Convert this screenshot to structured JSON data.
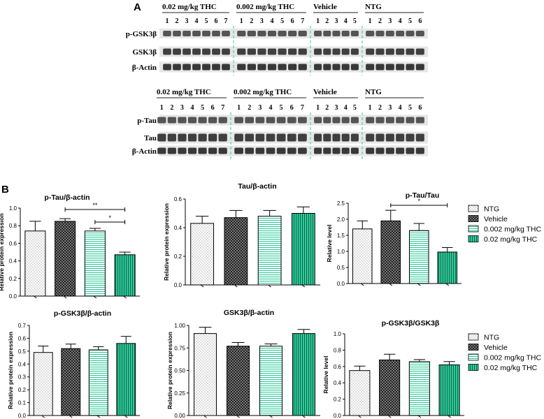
{
  "panel_a": {
    "label": "A",
    "set1": {
      "groups": [
        {
          "title": "0.02 mg/kg THC",
          "lanes": [
            "1",
            "2",
            "3",
            "4",
            "5",
            "6",
            "7"
          ]
        },
        {
          "title": "0.002 mg/kg THC",
          "lanes": [
            "1",
            "2",
            "3",
            "4",
            "5",
            "6",
            "7"
          ]
        },
        {
          "title": "Vehicle",
          "lanes": [
            "1",
            "2",
            "3",
            "4",
            "5"
          ]
        },
        {
          "title": "NTG",
          "lanes": [
            "1",
            "2",
            "3",
            "4",
            "5",
            "6"
          ]
        }
      ],
      "rows": [
        "p-GSK3β",
        "GSK3β",
        "β-Actin"
      ]
    },
    "set2": {
      "groups": [
        {
          "title": "0.02 mg/kg THC",
          "lanes": [
            "1",
            "2",
            "3",
            "4",
            "5",
            "6",
            "7"
          ]
        },
        {
          "title": "0.002 mg/kg THC",
          "lanes": [
            "1",
            "2",
            "3",
            "4",
            "5",
            "6",
            "7"
          ]
        },
        {
          "title": "Vehicle",
          "lanes": [
            "1",
            "2",
            "3",
            "4",
            "5"
          ]
        },
        {
          "title": "NTG",
          "lanes": [
            "1",
            "2",
            "3",
            "4",
            "5",
            "6"
          ]
        }
      ],
      "rows": [
        "p-Tau",
        "Tau",
        "β-Actin"
      ]
    }
  },
  "panel_b": {
    "label": "B",
    "legend_groups": [
      "NTG",
      "Vehicle",
      "0.002 mg/kg THC",
      "0.02 mg/kg THC"
    ],
    "group_colors": {
      "NTG": "#ffffff",
      "Vehicle": "#2b2b2b",
      "0.002 mg/kg THC": "#ffffff",
      "0.02 mg/kg THC": "#2ec99a"
    }
  },
  "chart_data": [
    {
      "type": "bar",
      "title": "p-Tau/β-actin",
      "ylabel": "Relative protein expression",
      "ylim": [
        0,
        1.0
      ],
      "yticks": [
        "0.0",
        "0.2",
        "0.4",
        "0.6",
        "0.8",
        "1.0"
      ],
      "categories": [
        "NTG",
        "Vehicle",
        "0.002 mg/kg THC",
        "0.02 mg/kg THC"
      ],
      "values": [
        0.74,
        0.85,
        0.74,
        0.47
      ],
      "errors": [
        0.11,
        0.03,
        0.03,
        0.03
      ],
      "significance": [
        {
          "from": 1,
          "to": 3,
          "label": "**"
        },
        {
          "from": 2,
          "to": 3,
          "label": "*"
        }
      ]
    },
    {
      "type": "bar",
      "title": "Tau/β-actin",
      "ylabel": "Relative protein expression",
      "ylim": [
        0,
        0.6
      ],
      "yticks": [
        "0.0",
        "0.2",
        "0.4",
        "0.6"
      ],
      "categories": [
        "NTG",
        "Vehicle",
        "0.002 mg/kg THC",
        "0.02 mg/kg THC"
      ],
      "values": [
        0.43,
        0.47,
        0.48,
        0.5
      ],
      "errors": [
        0.05,
        0.05,
        0.04,
        0.045
      ],
      "significance": []
    },
    {
      "type": "bar",
      "title": "p-Tau/Tau",
      "ylabel": "Relative level",
      "ylim": [
        0,
        2.5
      ],
      "yticks": [
        "0.0",
        "0.5",
        "1.0",
        "1.5",
        "2.0",
        "2.5"
      ],
      "categories": [
        "NTG",
        "Vehicle",
        "0.002 mg/kg THC",
        "0.02 mg/kg THC"
      ],
      "values": [
        1.7,
        1.95,
        1.65,
        0.98
      ],
      "errors": [
        0.25,
        0.33,
        0.22,
        0.14
      ],
      "significance": [
        {
          "from": 1,
          "to": 3,
          "label": "*"
        }
      ]
    },
    {
      "type": "bar",
      "title": "p-GSK3β/β-actin",
      "ylabel": "Relative protein expression",
      "ylim": [
        0,
        0.7
      ],
      "yticks": [
        "0.0",
        "0.1",
        "0.2",
        "0.3",
        "0.4",
        "0.5",
        "0.6",
        "0.7"
      ],
      "categories": [
        "NTG",
        "Vehicle",
        "0.002 mg/kg THC",
        "0.02 mg/kg THC"
      ],
      "values": [
        0.49,
        0.52,
        0.51,
        0.56
      ],
      "errors": [
        0.05,
        0.035,
        0.025,
        0.055
      ],
      "significance": []
    },
    {
      "type": "bar",
      "title": "GSK3β/β-actin",
      "ylabel": "Relative protein expression",
      "ylim": [
        0,
        1.0
      ],
      "yticks": [
        "0.00",
        "0.25",
        "0.50",
        "0.75",
        "1.00"
      ],
      "categories": [
        "NTG",
        "Vehicle",
        "0.002 mg/kg THC",
        "0.02 mg/kg THC"
      ],
      "values": [
        0.91,
        0.77,
        0.77,
        0.91
      ],
      "errors": [
        0.07,
        0.04,
        0.025,
        0.045
      ],
      "significance": []
    },
    {
      "type": "bar",
      "title": "p-GSK3β/GSK3β",
      "ylabel": "Relative level",
      "ylim": [
        0,
        1.0
      ],
      "yticks": [
        "0.0",
        "0.2",
        "0.4",
        "0.6",
        "0.8",
        "1.0"
      ],
      "categories": [
        "NTG",
        "Vehicle",
        "0.002 mg/kg THC",
        "0.02 mg/kg THC"
      ],
      "values": [
        0.55,
        0.68,
        0.66,
        0.62
      ],
      "errors": [
        0.055,
        0.07,
        0.025,
        0.04
      ],
      "significance": []
    }
  ]
}
